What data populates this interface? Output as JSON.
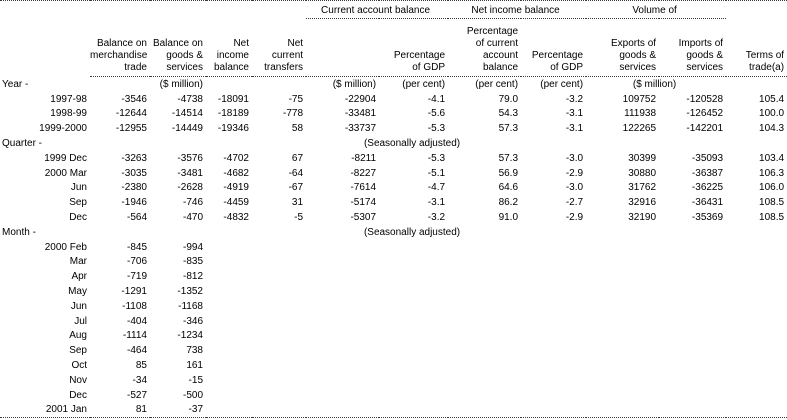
{
  "report": {
    "group_headers": {
      "current_account": "Current account balance",
      "net_income": "Net income balance",
      "volume": "Volume of"
    },
    "column_headers": {
      "balance_merchandise_trade": "Balance on\nmerchandise\ntrade",
      "balance_goods_services": "Balance on\ngoods &\nservices",
      "net_income_balance": "Net\nincome\nbalance",
      "net_current_transfers": "Net\ncurrent\ntransfers",
      "cab_percentage_of_gdp": "Percentage\nof GDP",
      "nib_percentage_of_cab": "Percentage\nof current\naccount\nbalance",
      "nib_percentage_of_gdp": "Percentage\nof GDP",
      "exports_goods_services": "Exports of\ngoods &\nservices",
      "imports_goods_services": "Imports of\ngoods &\nservices",
      "terms_of_trade": "Terms of\ntrade(a)"
    },
    "units": {
      "goods_services": "($ million)",
      "current_account": "($ million)",
      "cab_pct_gdp": "(per cent)",
      "nib_pct_cab": "(per cent)",
      "nib_pct_gdp": "(per cent)",
      "volume": "($ million)"
    },
    "sections": [
      {
        "label": "Year -",
        "note": "",
        "rows": [
          {
            "period": "1997-98",
            "values": [
              "-3546",
              "-4738",
              "-18091",
              "-75",
              "-22904",
              "-4.1",
              "79.0",
              "-3.2",
              "109752",
              "-120528",
              "105.4"
            ]
          },
          {
            "period": "1998-99",
            "values": [
              "-12644",
              "-14514",
              "-18189",
              "-778",
              "-33481",
              "-5.6",
              "54.3",
              "-3.1",
              "111938",
              "-126452",
              "100.0"
            ]
          },
          {
            "period": "1999-2000",
            "values": [
              "-12955",
              "-14449",
              "-19346",
              "58",
              "-33737",
              "-5.3",
              "57.3",
              "-3.1",
              "122265",
              "-142201",
              "104.3"
            ]
          }
        ]
      },
      {
        "label": "Quarter -",
        "note": "(Seasonally adjusted)",
        "rows": [
          {
            "period": "1999 Dec",
            "values": [
              "-3263",
              "-3576",
              "-4702",
              "67",
              "-8211",
              "-5.3",
              "57.3",
              "-3.0",
              "30399",
              "-35093",
              "103.4"
            ]
          },
          {
            "period": "2000 Mar",
            "values": [
              "-3035",
              "-3481",
              "-4682",
              "-64",
              "-8227",
              "-5.1",
              "56.9",
              "-2.9",
              "30880",
              "-36387",
              "106.3"
            ]
          },
          {
            "period": "Jun",
            "values": [
              "-2380",
              "-2628",
              "-4919",
              "-67",
              "-7614",
              "-4.7",
              "64.6",
              "-3.0",
              "31762",
              "-36225",
              "106.0"
            ]
          },
          {
            "period": "Sep",
            "values": [
              "-1946",
              "-746",
              "-4459",
              "31",
              "-5174",
              "-3.1",
              "86.2",
              "-2.7",
              "32916",
              "-36431",
              "108.5"
            ]
          },
          {
            "period": "Dec",
            "values": [
              "-564",
              "-470",
              "-4832",
              "-5",
              "-5307",
              "-3.2",
              "91.0",
              "-2.9",
              "32190",
              "-35369",
              "108.5"
            ]
          }
        ]
      },
      {
        "label": "Month -",
        "note": "(Seasonally adjusted)",
        "rows": [
          {
            "period": "2000 Feb",
            "values": [
              "-845",
              "-994",
              "",
              "",
              "",
              "",
              "",
              "",
              "",
              "",
              ""
            ]
          },
          {
            "period": "Mar",
            "values": [
              "-706",
              "-835",
              "",
              "",
              "",
              "",
              "",
              "",
              "",
              "",
              ""
            ]
          },
          {
            "period": "Apr",
            "values": [
              "-719",
              "-812",
              "",
              "",
              "",
              "",
              "",
              "",
              "",
              "",
              ""
            ]
          },
          {
            "period": "May",
            "values": [
              "-1291",
              "-1352",
              "",
              "",
              "",
              "",
              "",
              "",
              "",
              "",
              ""
            ]
          },
          {
            "period": "Jun",
            "values": [
              "-1108",
              "-1168",
              "",
              "",
              "",
              "",
              "",
              "",
              "",
              "",
              ""
            ]
          },
          {
            "period": "Jul",
            "values": [
              "-404",
              "-346",
              "",
              "",
              "",
              "",
              "",
              "",
              "",
              "",
              ""
            ]
          },
          {
            "period": "Aug",
            "values": [
              "-1114",
              "-1234",
              "",
              "",
              "",
              "",
              "",
              "",
              "",
              "",
              ""
            ]
          },
          {
            "period": "Sep",
            "values": [
              "-464",
              "738",
              "",
              "",
              "",
              "",
              "",
              "",
              "",
              "",
              ""
            ]
          },
          {
            "period": "Oct",
            "values": [
              "85",
              "161",
              "",
              "",
              "",
              "",
              "",
              "",
              "",
              "",
              ""
            ]
          },
          {
            "period": "Nov",
            "values": [
              "-34",
              "-15",
              "",
              "",
              "",
              "",
              "",
              "",
              "",
              "",
              ""
            ]
          },
          {
            "period": "Dec",
            "values": [
              "-527",
              "-500",
              "",
              "",
              "",
              "",
              "",
              "",
              "",
              "",
              ""
            ]
          },
          {
            "period": "2001 Jan",
            "values": [
              "81",
              "-37",
              "",
              "",
              "",
              "",
              "",
              "",
              "",
              "",
              ""
            ]
          }
        ]
      }
    ]
  }
}
